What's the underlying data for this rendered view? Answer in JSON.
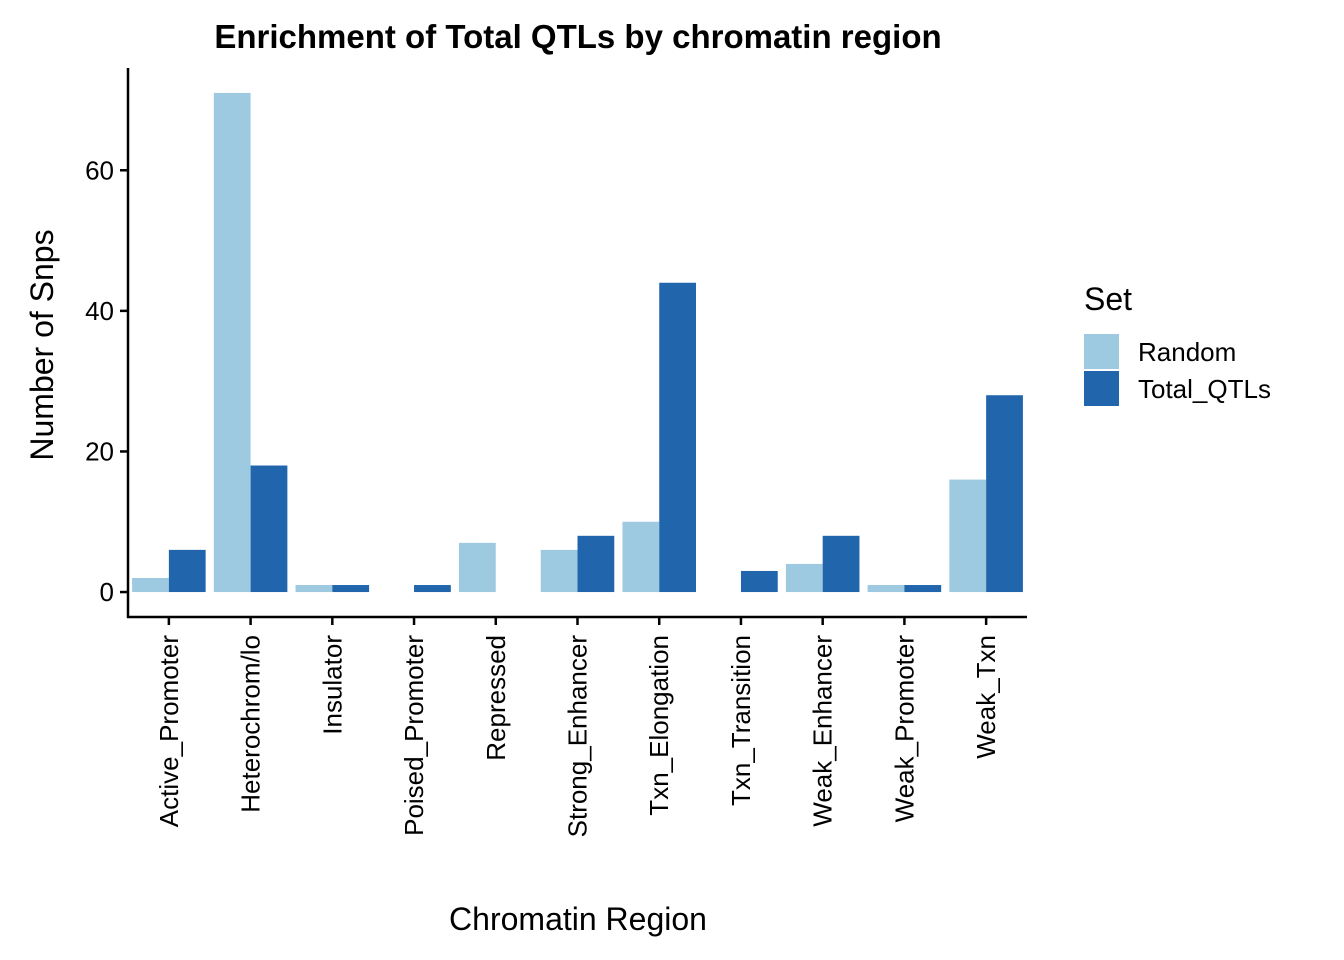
{
  "chart_data": {
    "type": "bar",
    "title": "Enrichment of Total QTLs by chromatin region",
    "xlabel": "Chromatin Region",
    "ylabel": "Number of Snps",
    "categories": [
      "Active_Promoter",
      "Heterochrom/lo",
      "Insulator",
      "Poised_Promoter",
      "Repressed",
      "Strong_Enhancer",
      "Txn_Elongation",
      "Txn_Transition",
      "Weak_Enhancer",
      "Weak_Promoter",
      "Weak_Txn"
    ],
    "series": [
      {
        "name": "Random",
        "color": "#9ecae1",
        "values": [
          2,
          71,
          1,
          0,
          7,
          6,
          10,
          0,
          4,
          1,
          16
        ]
      },
      {
        "name": "Total_QTLs",
        "color": "#2166ac",
        "values": [
          6,
          18,
          1,
          1,
          0,
          8,
          44,
          3,
          8,
          1,
          28
        ]
      }
    ],
    "ylim": [
      -3.55,
      74.55
    ],
    "yticks": [
      0,
      20,
      40,
      60
    ],
    "legend": {
      "title": "Set",
      "position": "right"
    },
    "grid": false
  }
}
